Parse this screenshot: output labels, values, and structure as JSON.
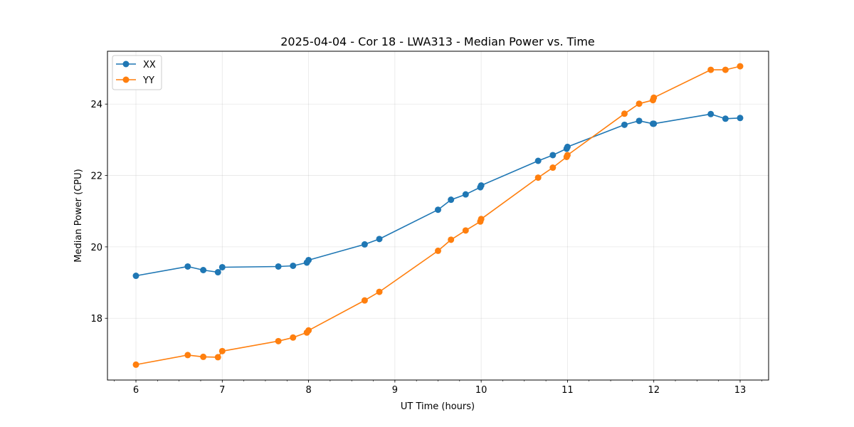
{
  "chart_data": {
    "type": "line",
    "title": "2025-04-04 - Cor 18 - LWA313 - Median Power vs. Time",
    "xlabel": "UT Time (hours)",
    "ylabel": "Median Power (CPU)",
    "xlim": [
      5.67,
      13.33
    ],
    "ylim": [
      16.27,
      25.48
    ],
    "xticks": [
      6,
      7,
      8,
      9,
      10,
      11,
      12,
      13
    ],
    "yticks": [
      18,
      20,
      22,
      24
    ],
    "x_minor_step": 0.25,
    "grid": true,
    "legend_position": "top-left",
    "series": [
      {
        "name": "XX",
        "color": "#1f77b4",
        "x": [
          6.0,
          6.6,
          6.78,
          6.95,
          7.0,
          7.65,
          7.82,
          7.98,
          8.0,
          8.65,
          8.82,
          9.5,
          9.65,
          9.82,
          9.99,
          10.0,
          10.66,
          10.83,
          10.99,
          11.0,
          11.66,
          11.83,
          11.99,
          12.0,
          12.66,
          12.83,
          13.0
        ],
        "y": [
          19.19,
          19.45,
          19.35,
          19.29,
          19.43,
          19.45,
          19.47,
          19.56,
          19.63,
          20.07,
          20.22,
          21.04,
          21.32,
          21.47,
          21.67,
          21.72,
          22.41,
          22.57,
          22.75,
          22.8,
          23.42,
          23.53,
          23.45,
          23.45,
          23.72,
          23.59,
          23.61
        ]
      },
      {
        "name": "YY",
        "color": "#ff7f0e",
        "x": [
          6.0,
          6.6,
          6.78,
          6.95,
          7.0,
          7.65,
          7.82,
          7.98,
          8.0,
          8.65,
          8.82,
          9.5,
          9.65,
          9.82,
          9.99,
          10.0,
          10.66,
          10.83,
          10.99,
          11.0,
          11.66,
          11.83,
          11.99,
          12.0,
          12.66,
          12.83,
          13.0
        ],
        "y": [
          16.7,
          16.97,
          16.92,
          16.91,
          17.08,
          17.36,
          17.46,
          17.6,
          17.66,
          18.5,
          18.74,
          19.89,
          20.2,
          20.46,
          20.71,
          20.78,
          21.94,
          22.22,
          22.52,
          22.57,
          23.73,
          24.01,
          24.11,
          24.18,
          24.96,
          24.96,
          25.06
        ]
      }
    ]
  }
}
